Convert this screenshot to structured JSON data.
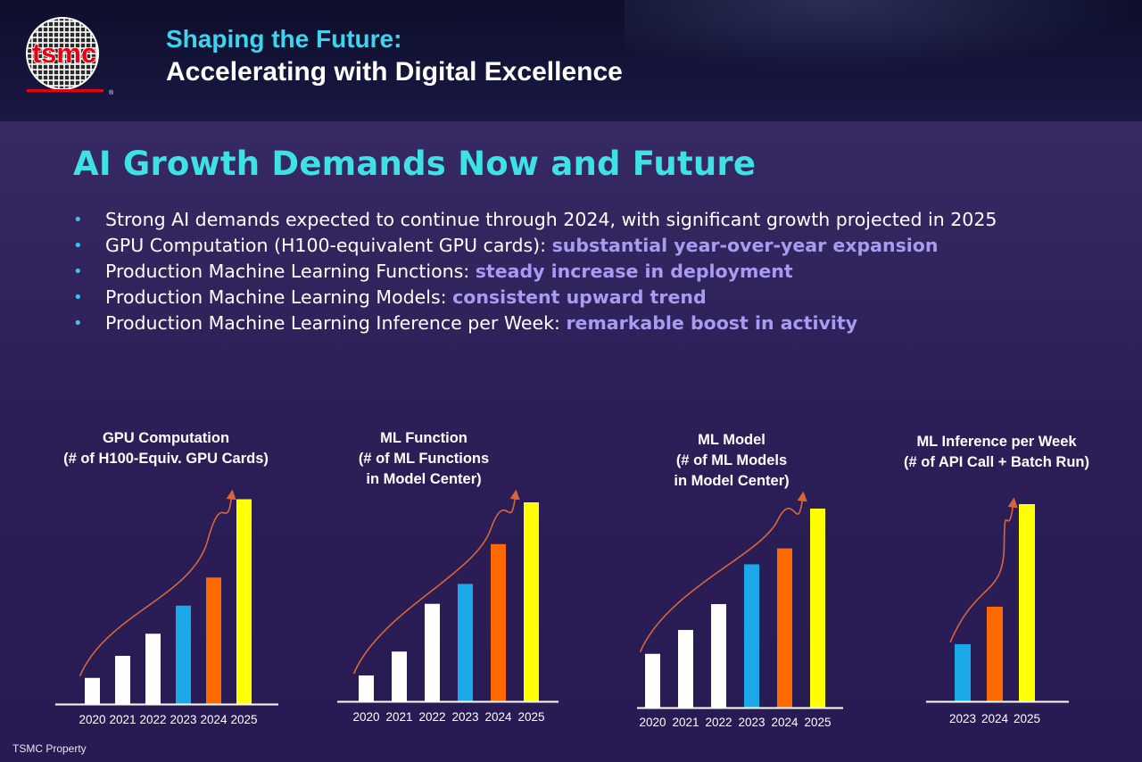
{
  "header": {
    "line1": "Shaping the Future:",
    "line2": "Accelerating with Digital Excellence"
  },
  "logo": {
    "text": "tsmc",
    "registered": "®"
  },
  "slide": {
    "title": "AI Growth Demands Now and Future",
    "bullets": [
      {
        "text": "Strong AI demands expected to continue through 2024, with significant growth projected in 2025",
        "emphasis": ""
      },
      {
        "text": "GPU Computation (H100-equivalent GPU cards): ",
        "emphasis": "substantial year-over-year expansion"
      },
      {
        "text": "Production Machine Learning Functions: ",
        "emphasis": "steady increase in deployment"
      },
      {
        "text": "Production Machine Learning Models: ",
        "emphasis": "consistent upward trend"
      },
      {
        "text": "Production Machine Learning Inference per Week: ",
        "emphasis": "remarkable boost in activity"
      }
    ]
  },
  "footer": {
    "label": "TSMC Property"
  },
  "colors": {
    "white": "#ffffff",
    "blue": "#1aa8e8",
    "orange": "#ff6a00",
    "yellow": "#ffff00",
    "arrow": "#d9663a",
    "title_cyan": "#3ee2e6",
    "emphasis": "#a89bf2"
  },
  "chart_data": [
    {
      "type": "bar",
      "title": [
        "GPU Computation",
        "(# of H100-Equiv. GPU Cards)"
      ],
      "categories": [
        "2020",
        "2021",
        "2022",
        "2023",
        "2024",
        "2025"
      ],
      "values": [
        13,
        24,
        35,
        49,
        63,
        102
      ],
      "bar_colors": [
        "#ffffff",
        "#ffffff",
        "#ffffff",
        "#1aa8e8",
        "#ff6a00",
        "#ffff00"
      ],
      "ylim": [
        0,
        100
      ],
      "trend_arrow": true
    },
    {
      "type": "bar",
      "title": [
        "ML Function",
        "(# of ML Functions",
        "in Model Center)"
      ],
      "categories": [
        "2020",
        "2021",
        "2022",
        "2023",
        "2024",
        "2025"
      ],
      "values": [
        13,
        25,
        49,
        59,
        79,
        100
      ],
      "bar_colors": [
        "#ffffff",
        "#ffffff",
        "#ffffff",
        "#1aa8e8",
        "#ff6a00",
        "#ffff00"
      ],
      "ylim": [
        0,
        100
      ],
      "trend_arrow": true
    },
    {
      "type": "bar",
      "title": [
        "ML Model",
        "(# of ML Models",
        "in Model Center)"
      ],
      "categories": [
        "2020",
        "2021",
        "2022",
        "2023",
        "2024",
        "2025"
      ],
      "values": [
        27,
        39,
        52,
        72,
        80,
        100
      ],
      "bar_colors": [
        "#ffffff",
        "#ffffff",
        "#ffffff",
        "#1aa8e8",
        "#ff6a00",
        "#ffff00"
      ],
      "ylim": [
        0,
        100
      ],
      "trend_arrow": true
    },
    {
      "type": "bar",
      "title": [
        "ML Inference per Week",
        "(# of API Call + Batch Run)"
      ],
      "categories": [
        "2023",
        "2024",
        "2025"
      ],
      "values": [
        29,
        48,
        100
      ],
      "bar_colors": [
        "#1aa8e8",
        "#ff6a00",
        "#ffff00"
      ],
      "ylim": [
        0,
        100
      ],
      "trend_arrow": true
    }
  ]
}
